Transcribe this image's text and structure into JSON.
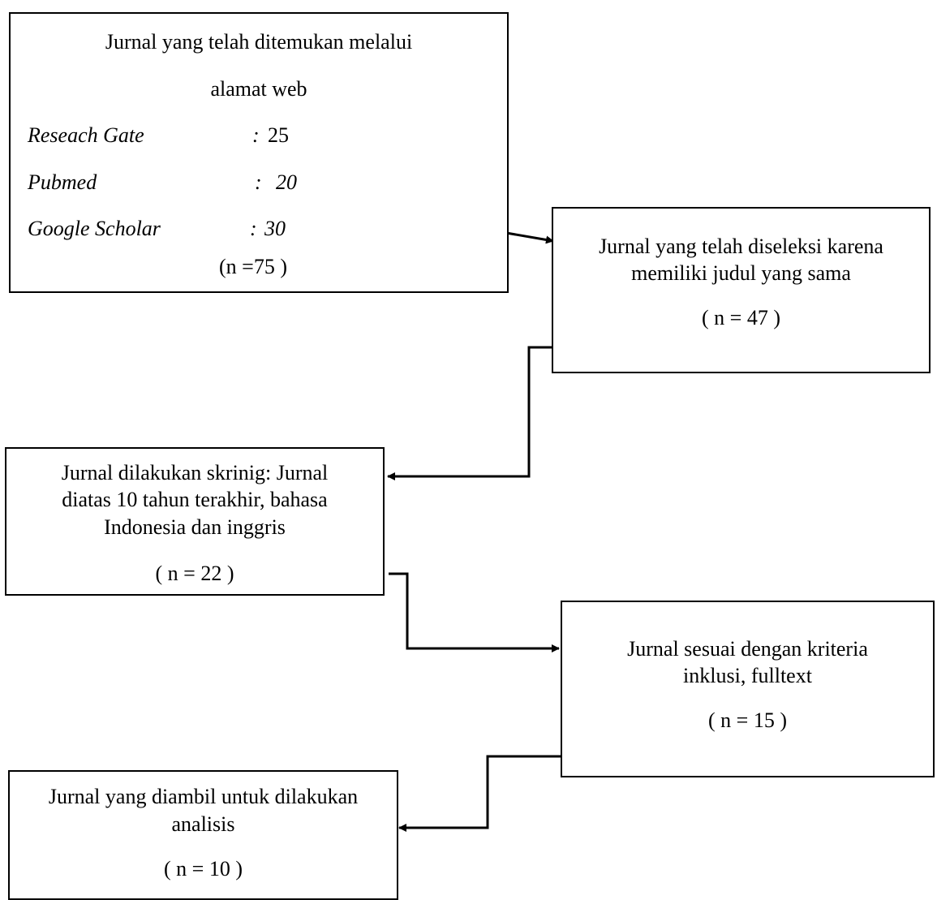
{
  "box1": {
    "line1": "Jurnal yang telah ditemukan melalui",
    "line2": "alamat web",
    "sources": [
      {
        "name": "Reseach Gate",
        "sep": ":",
        "count": "25"
      },
      {
        "name": "Pubmed",
        "sep": ":",
        "count": "20"
      },
      {
        "name": "Google Scholar",
        "sep": ":",
        "count": "30"
      }
    ],
    "total": "(n =75 )"
  },
  "box2": {
    "line1": "Jurnal yang telah diseleksi karena",
    "line2": "memiliki judul yang sama",
    "count": "( n = 47 )"
  },
  "box3": {
    "line1": "Jurnal dilakukan skrinig: Jurnal",
    "line2": "diatas 10 tahun terakhir, bahasa",
    "line3": "Indonesia dan inggris",
    "count": "( n = 22 )"
  },
  "box4": {
    "line1": "Jurnal sesuai dengan kriteria",
    "line2": "inklusi, fulltext",
    "count": "( n = 15 )"
  },
  "box5": {
    "line1": "Jurnal yang diambil untuk dilakukan",
    "line2": "analisis",
    "count": "( n = 10 )"
  }
}
